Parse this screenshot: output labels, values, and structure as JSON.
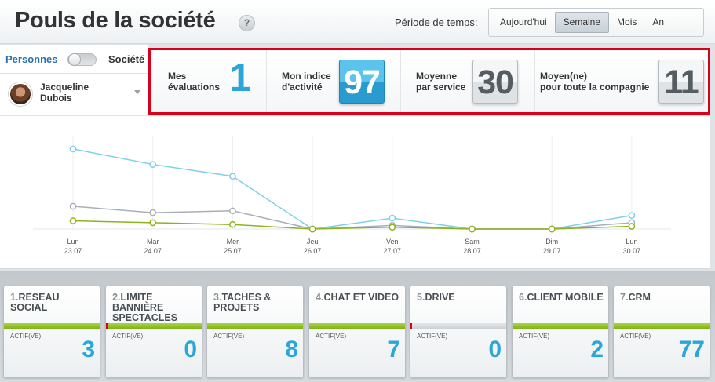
{
  "header": {
    "title": "Pouls de la société",
    "help": "?",
    "period_label": "Période de temps:",
    "periods": [
      {
        "label": "Aujourd'hui",
        "active": false
      },
      {
        "label": "Semaine",
        "active": true
      },
      {
        "label": "Mois",
        "active": false
      },
      {
        "label": "An",
        "active": false
      }
    ]
  },
  "sidebar": {
    "toggle_left": "Personnes",
    "toggle_right": "Société",
    "user_first": "Jacqueline",
    "user_last": "Dubois"
  },
  "stats": {
    "my_evaluations_line1": "Mes",
    "my_evaluations_line2": "évaluations",
    "my_evaluations_value": "1",
    "activity_line1": "Mon indice",
    "activity_line2": "d'activité",
    "activity_value": "97",
    "service_line1": "Moyenne",
    "service_line2": "par service",
    "service_value": "30",
    "company_line1": "Moyen(ne)",
    "company_line2": "pour toute la compagnie",
    "company_value": "11"
  },
  "chart_data": {
    "type": "line",
    "categories": [
      {
        "day": "Lun",
        "date": "23.07"
      },
      {
        "day": "Mar",
        "date": "24.07"
      },
      {
        "day": "Mer",
        "date": "25.07"
      },
      {
        "day": "Jeu",
        "date": "26.07"
      },
      {
        "day": "Ven",
        "date": "27.07"
      },
      {
        "day": "Sam",
        "date": "28.07"
      },
      {
        "day": "Dim",
        "date": "29.07"
      },
      {
        "day": "Lun",
        "date": "30.07"
      }
    ],
    "ylim": [
      0,
      100
    ],
    "grid": true,
    "series": [
      {
        "color": "#7fd0ea",
        "values": [
          88,
          71,
          58,
          0,
          12,
          0,
          0,
          15
        ]
      },
      {
        "color": "#a9aeb8",
        "values": [
          25,
          18,
          20,
          0,
          4,
          0,
          0,
          7
        ]
      },
      {
        "color": "#8fb21c",
        "values": [
          9,
          7,
          5,
          0,
          2,
          0,
          0,
          3
        ]
      }
    ]
  },
  "tiles": [
    {
      "num": "1.",
      "title": "RESEAU SOCIAL",
      "status": "ACTIF(VE)",
      "count": "3",
      "bar": "green"
    },
    {
      "num": "2.",
      "title": "LIMITE BANNIÈRE SPECTACLES",
      "status": "ACTIF(VE)",
      "count": "0",
      "bar": "green"
    },
    {
      "num": "3.",
      "title": "TACHES & PROJETS",
      "status": "ACTIF(VE)",
      "count": "8",
      "bar": "green"
    },
    {
      "num": "4.",
      "title": "CHAT ET VIDEO",
      "status": "ACTIF(VE)",
      "count": "7",
      "bar": "green"
    },
    {
      "num": "5.",
      "title": "DRIVE",
      "status": "ACTIF(VE)",
      "count": "0",
      "bar": "grey"
    },
    {
      "num": "6.",
      "title": "CLIENT MOBILE",
      "status": "ACTIF(VE)",
      "count": "2",
      "bar": "green"
    },
    {
      "num": "7.",
      "title": "CRM",
      "status": "ACTIF(VE)",
      "count": "77",
      "bar": "green"
    }
  ]
}
